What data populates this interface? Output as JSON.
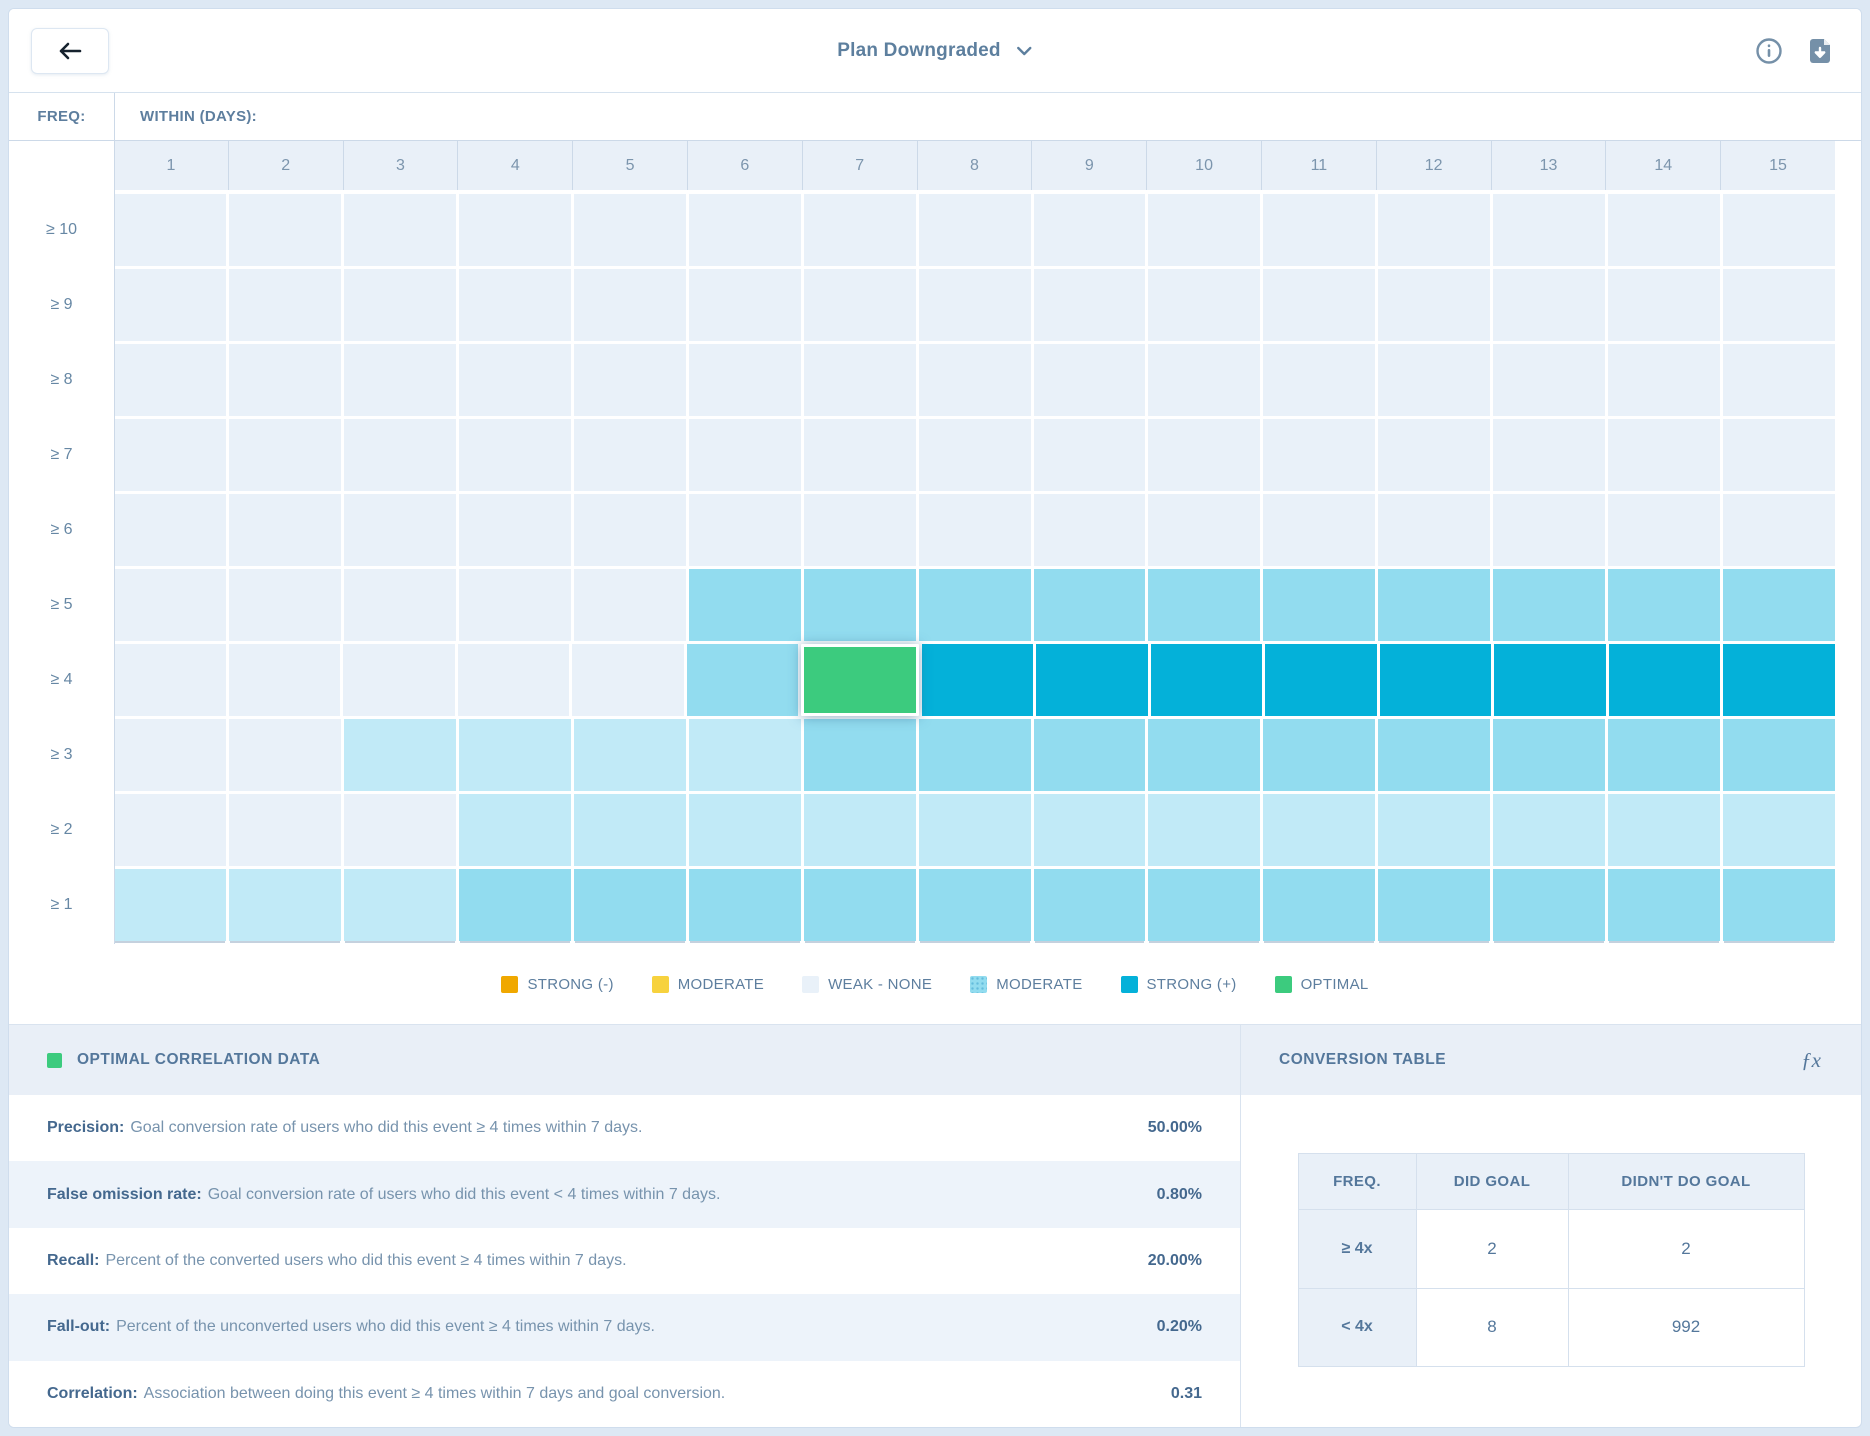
{
  "topbar": {
    "back_label": "back",
    "title": "Plan Downgraded"
  },
  "palette": {
    "strong_neg": "#F0A800",
    "moderate_neg": "#F7D23E",
    "weak": "#E9F1F9",
    "moderate_pos_light": "#C1EAF7",
    "moderate_pos": "#92DCEF",
    "strong_pos": "#04B1D9",
    "optimal": "#3CCB7E"
  },
  "heatmap": {
    "freq_label": "FREQ:",
    "within_label": "WITHIN (DAYS):",
    "columns": [
      "1",
      "2",
      "3",
      "4",
      "5",
      "6",
      "7",
      "8",
      "9",
      "10",
      "11",
      "12",
      "13",
      "14",
      "15"
    ],
    "level_map": {
      "W": "weak",
      "L": "moderate_pos_light",
      "M": "moderate_pos",
      "S": "strong_pos",
      "O": "optimal"
    },
    "rows": [
      {
        "label": "≥ 10",
        "cells": [
          "W",
          "W",
          "W",
          "W",
          "W",
          "W",
          "W",
          "W",
          "W",
          "W",
          "W",
          "W",
          "W",
          "W",
          "W"
        ]
      },
      {
        "label": "≥ 9",
        "cells": [
          "W",
          "W",
          "W",
          "W",
          "W",
          "W",
          "W",
          "W",
          "W",
          "W",
          "W",
          "W",
          "W",
          "W",
          "W"
        ]
      },
      {
        "label": "≥ 8",
        "cells": [
          "W",
          "W",
          "W",
          "W",
          "W",
          "W",
          "W",
          "W",
          "W",
          "W",
          "W",
          "W",
          "W",
          "W",
          "W"
        ]
      },
      {
        "label": "≥ 7",
        "cells": [
          "W",
          "W",
          "W",
          "W",
          "W",
          "W",
          "W",
          "W",
          "W",
          "W",
          "W",
          "W",
          "W",
          "W",
          "W"
        ]
      },
      {
        "label": "≥ 6",
        "cells": [
          "W",
          "W",
          "W",
          "W",
          "W",
          "W",
          "W",
          "W",
          "W",
          "W",
          "W",
          "W",
          "W",
          "W",
          "W"
        ]
      },
      {
        "label": "≥ 5",
        "cells": [
          "W",
          "W",
          "W",
          "W",
          "W",
          "M",
          "M",
          "M",
          "M",
          "M",
          "M",
          "M",
          "M",
          "M",
          "M"
        ]
      },
      {
        "label": "≥ 4",
        "cells": [
          "W",
          "W",
          "W",
          "W",
          "W",
          "M",
          "O",
          "S",
          "S",
          "S",
          "S",
          "S",
          "S",
          "S",
          "S"
        ]
      },
      {
        "label": "≥ 3",
        "cells": [
          "W",
          "W",
          "L",
          "L",
          "L",
          "L",
          "M",
          "M",
          "M",
          "M",
          "M",
          "M",
          "M",
          "M",
          "M"
        ]
      },
      {
        "label": "≥ 2",
        "cells": [
          "W",
          "W",
          "W",
          "L",
          "L",
          "L",
          "L",
          "L",
          "L",
          "L",
          "L",
          "L",
          "L",
          "L",
          "L"
        ]
      },
      {
        "label": "≥ 1",
        "cells": [
          "L",
          "L",
          "L",
          "M",
          "M",
          "M",
          "M",
          "M",
          "M",
          "M",
          "M",
          "M",
          "M",
          "M",
          "M"
        ]
      }
    ],
    "optimal_cell": {
      "row_label": "≥ 4",
      "column": "7"
    }
  },
  "legend": [
    {
      "label": "STRONG (-)",
      "level": "strong_neg",
      "dotted": false
    },
    {
      "label": "MODERATE",
      "level": "moderate_neg",
      "dotted": false
    },
    {
      "label": "WEAK - NONE",
      "level": "weak",
      "dotted": false
    },
    {
      "label": "MODERATE",
      "level": "moderate_pos",
      "dotted": true
    },
    {
      "label": "STRONG (+)",
      "level": "strong_pos",
      "dotted": false
    },
    {
      "label": "OPTIMAL",
      "level": "optimal",
      "dotted": false
    }
  ],
  "optimal_panel": {
    "title": "OPTIMAL CORRELATION DATA",
    "metrics": [
      {
        "label": "Precision:",
        "description": "Goal conversion rate of users who did this event ≥ 4 times within 7 days.",
        "value": "50.00%"
      },
      {
        "label": "False omission rate:",
        "description": "Goal conversion rate of users who did this event < 4 times within 7 days.",
        "value": "0.80%"
      },
      {
        "label": "Recall:",
        "description": "Percent of the converted users who did this event ≥ 4 times within 7 days.",
        "value": "20.00%"
      },
      {
        "label": "Fall-out:",
        "description": "Percent of the unconverted users who did this event ≥ 4 times within 7 days.",
        "value": "0.20%"
      },
      {
        "label": "Correlation:",
        "description": "Association between doing this event ≥ 4 times within 7 days and goal conversion.",
        "value": "0.31"
      }
    ]
  },
  "conversion_panel": {
    "title": "CONVERSION TABLE",
    "headers": [
      "FREQ.",
      "DID GOAL",
      "DIDN'T DO GOAL"
    ],
    "rows": [
      {
        "freq": "≥ 4x",
        "did_goal": "2",
        "didnt_do_goal": "2"
      },
      {
        "freq": "< 4x",
        "did_goal": "8",
        "didnt_do_goal": "992"
      }
    ]
  },
  "chart_data": {
    "type": "heatmap",
    "title": "Plan Downgraded correlation heatmap",
    "x": [
      "1",
      "2",
      "3",
      "4",
      "5",
      "6",
      "7",
      "8",
      "9",
      "10",
      "11",
      "12",
      "13",
      "14",
      "15"
    ],
    "xlabel": "WITHIN (DAYS):",
    "y": [
      "≥ 10",
      "≥ 9",
      "≥ 8",
      "≥ 7",
      "≥ 6",
      "≥ 5",
      "≥ 4",
      "≥ 3",
      "≥ 2",
      "≥ 1"
    ],
    "ylabel": "FREQ:",
    "levels_legend": [
      "STRONG (-)",
      "MODERATE",
      "WEAK - NONE",
      "MODERATE",
      "STRONG (+)",
      "OPTIMAL"
    ],
    "values": [
      [
        "W",
        "W",
        "W",
        "W",
        "W",
        "W",
        "W",
        "W",
        "W",
        "W",
        "W",
        "W",
        "W",
        "W",
        "W"
      ],
      [
        "W",
        "W",
        "W",
        "W",
        "W",
        "W",
        "W",
        "W",
        "W",
        "W",
        "W",
        "W",
        "W",
        "W",
        "W"
      ],
      [
        "W",
        "W",
        "W",
        "W",
        "W",
        "W",
        "W",
        "W",
        "W",
        "W",
        "W",
        "W",
        "W",
        "W",
        "W"
      ],
      [
        "W",
        "W",
        "W",
        "W",
        "W",
        "W",
        "W",
        "W",
        "W",
        "W",
        "W",
        "W",
        "W",
        "W",
        "W"
      ],
      [
        "W",
        "W",
        "W",
        "W",
        "W",
        "W",
        "W",
        "W",
        "W",
        "W",
        "W",
        "W",
        "W",
        "W",
        "W"
      ],
      [
        "W",
        "W",
        "W",
        "W",
        "W",
        "M",
        "M",
        "M",
        "M",
        "M",
        "M",
        "M",
        "M",
        "M",
        "M"
      ],
      [
        "W",
        "W",
        "W",
        "W",
        "W",
        "M",
        "O",
        "S",
        "S",
        "S",
        "S",
        "S",
        "S",
        "S",
        "S"
      ],
      [
        "W",
        "W",
        "L",
        "L",
        "L",
        "L",
        "M",
        "M",
        "M",
        "M",
        "M",
        "M",
        "M",
        "M",
        "M"
      ],
      [
        "W",
        "W",
        "W",
        "L",
        "L",
        "L",
        "L",
        "L",
        "L",
        "L",
        "L",
        "L",
        "L",
        "L",
        "L"
      ],
      [
        "L",
        "L",
        "L",
        "M",
        "M",
        "M",
        "M",
        "M",
        "M",
        "M",
        "M",
        "M",
        "M",
        "M",
        "M"
      ]
    ],
    "legend_position": "bottom"
  }
}
